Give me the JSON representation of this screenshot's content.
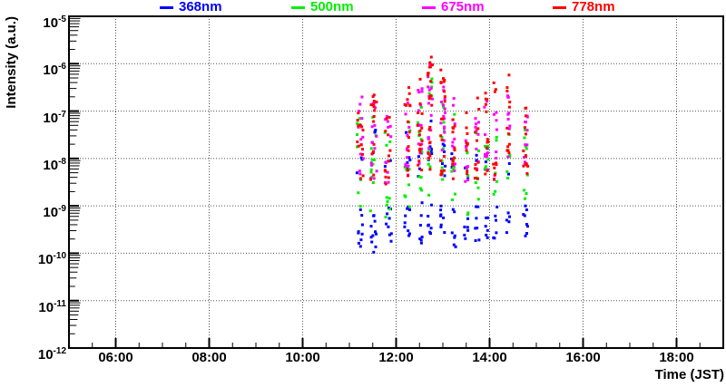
{
  "chart_data": {
    "type": "scatter",
    "title": "",
    "marker": "square",
    "marker_size_px": 3,
    "grid": "dotted",
    "grid_color": "#555555",
    "frame_color": "#000000",
    "legend_position": "top",
    "axes": {
      "x": {
        "label": "Time (JST)",
        "range_hours": [
          5,
          19
        ],
        "tick_hours": [
          6,
          8,
          10,
          12,
          14,
          16,
          18
        ],
        "tick_labels": [
          "06:00",
          "08:00",
          "10:00",
          "12:00",
          "14:00",
          "16:00",
          "18:00"
        ],
        "minor_step_hours": 0.5
      },
      "y": {
        "label": "Intensity (a.u.)",
        "scale": "log",
        "range_exponents": [
          -12,
          -5
        ],
        "tick_exponents": [
          -5,
          -6,
          -7,
          -8,
          -9,
          -10,
          -11,
          -12
        ]
      }
    },
    "series": [
      {
        "name": "368nm",
        "color": "#0000ff"
      },
      {
        "name": "500nm",
        "color": "#00ee00"
      },
      {
        "name": "675nm",
        "color": "#ff00ff"
      },
      {
        "name": "778nm",
        "color": "#ff0000"
      }
    ],
    "clusters": [
      {
        "t": 11.23,
        "w": 0.14,
        "points": {
          "368nm": [
            [
              -8.6,
              -7.9,
              3
            ],
            [
              -9.9,
              -8.9,
              9
            ]
          ],
          "500nm": [
            [
              -9.1,
              -7.1,
              9
            ]
          ],
          "675nm": [
            [
              -8.6,
              -6.7,
              12
            ]
          ],
          "778nm": [
            [
              -8.6,
              -6.9,
              13
            ]
          ]
        }
      },
      {
        "t": 11.52,
        "w": 0.14,
        "points": {
          "368nm": [
            [
              -8.5,
              -7.4,
              5
            ],
            [
              -10.0,
              -8.9,
              11
            ]
          ],
          "500nm": [
            [
              -9.2,
              -7.0,
              11
            ]
          ],
          "675nm": [
            [
              -8.5,
              -6.7,
              13
            ]
          ],
          "778nm": [
            [
              -8.5,
              -6.6,
              15
            ]
          ]
        }
      },
      {
        "t": 11.83,
        "w": 0.14,
        "points": {
          "368nm": [
            [
              -8.6,
              -7.9,
              3
            ],
            [
              -9.9,
              -9.0,
              9
            ]
          ],
          "500nm": [
            [
              -9.3,
              -7.3,
              9
            ]
          ],
          "675nm": [
            [
              -8.7,
              -7.0,
              11
            ]
          ],
          "778nm": [
            [
              -8.6,
              -6.9,
              12
            ]
          ]
        }
      },
      {
        "t": 12.24,
        "w": 0.12,
        "points": {
          "368nm": [
            [
              -8.5,
              -7.4,
              5
            ],
            [
              -9.9,
              -8.9,
              9
            ]
          ],
          "500nm": [
            [
              -9.1,
              -7.1,
              9
            ]
          ],
          "675nm": [
            [
              -8.5,
              -6.7,
              12
            ]
          ],
          "778nm": [
            [
              -8.5,
              -6.4,
              15
            ]
          ]
        }
      },
      {
        "t": 12.51,
        "w": 0.1,
        "points": {
          "368nm": [
            [
              -8.5,
              -7.3,
              5
            ],
            [
              -9.8,
              -8.9,
              7
            ]
          ],
          "500nm": [
            [
              -8.9,
              -6.9,
              10
            ]
          ],
          "675nm": [
            [
              -8.4,
              -6.5,
              13
            ]
          ],
          "778nm": [
            [
              -8.4,
              -6.3,
              16
            ]
          ]
        }
      },
      {
        "t": 12.73,
        "w": 0.1,
        "points": {
          "368nm": [
            [
              -8.5,
              -7.2,
              6
            ],
            [
              -9.7,
              -8.9,
              7
            ]
          ],
          "500nm": [
            [
              -8.8,
              -6.2,
              12
            ]
          ],
          "675nm": [
            [
              -8.3,
              -6.0,
              16
            ]
          ],
          "778nm": [
            [
              -8.3,
              -5.8,
              22
            ]
          ]
        }
      },
      {
        "t": 13.0,
        "w": 0.1,
        "points": {
          "368nm": [
            [
              -8.6,
              -7.2,
              6
            ],
            [
              -9.8,
              -9.0,
              8
            ]
          ],
          "500nm": [
            [
              -8.9,
              -6.4,
              11
            ]
          ],
          "675nm": [
            [
              -8.4,
              -6.1,
              15
            ]
          ],
          "778nm": [
            [
              -8.4,
              -5.9,
              20
            ]
          ]
        }
      },
      {
        "t": 13.23,
        "w": 0.09,
        "points": {
          "368nm": [
            [
              -8.5,
              -7.7,
              4
            ],
            [
              -9.9,
              -9.0,
              7
            ]
          ],
          "500nm": [
            [
              -9.1,
              -7.0,
              8
            ]
          ],
          "675nm": [
            [
              -8.5,
              -6.6,
              11
            ]
          ],
          "778nm": [
            [
              -8.5,
              -6.6,
              12
            ]
          ]
        }
      },
      {
        "t": 13.5,
        "w": 0.08,
        "points": {
          "368nm": [
            [
              -8.6,
              -8.0,
              2
            ],
            [
              -9.8,
              -9.1,
              6
            ]
          ],
          "500nm": [
            [
              -9.2,
              -7.5,
              7
            ]
          ],
          "675nm": [
            [
              -8.6,
              -7.2,
              8
            ]
          ],
          "778nm": [
            [
              -8.6,
              -7.0,
              9
            ]
          ]
        }
      },
      {
        "t": 13.73,
        "w": 0.09,
        "points": {
          "368nm": [
            [
              -8.5,
              -7.8,
              3
            ],
            [
              -9.9,
              -9.0,
              7
            ]
          ],
          "500nm": [
            [
              -9.1,
              -7.2,
              7
            ]
          ],
          "675nm": [
            [
              -8.5,
              -6.9,
              9
            ]
          ],
          "778nm": [
            [
              -8.5,
              -6.7,
              11
            ]
          ]
        }
      },
      {
        "t": 13.93,
        "w": 0.08,
        "points": {
          "368nm": [
            [
              -8.4,
              -7.7,
              3
            ],
            [
              -9.8,
              -9.0,
              6
            ]
          ],
          "500nm": [
            [
              -9.0,
              -7.1,
              7
            ]
          ],
          "675nm": [
            [
              -8.4,
              -6.7,
              9
            ]
          ],
          "778nm": [
            [
              -8.4,
              -6.4,
              11
            ]
          ]
        }
      },
      {
        "t": 14.12,
        "w": 0.08,
        "points": {
          "368nm": [
            [
              -9.8,
              -9.0,
              6
            ]
          ],
          "500nm": [
            [
              -9.1,
              -7.3,
              6
            ]
          ],
          "675nm": [
            [
              -8.5,
              -6.9,
              8
            ]
          ],
          "778nm": [
            [
              -8.5,
              -6.4,
              9
            ]
          ]
        }
      },
      {
        "t": 14.4,
        "w": 0.07,
        "points": {
          "368nm": [
            [
              -8.4,
              -8.0,
              2
            ],
            [
              -9.7,
              -9.1,
              5
            ]
          ],
          "500nm": [
            [
              -8.9,
              -7.2,
              6
            ]
          ],
          "675nm": [
            [
              -8.4,
              -6.5,
              9
            ]
          ],
          "778nm": [
            [
              -8.3,
              -6.0,
              12
            ]
          ]
        }
      },
      {
        "t": 14.77,
        "w": 0.1,
        "points": {
          "368nm": [
            [
              -10.0,
              -8.9,
              8
            ]
          ],
          "500nm": [
            [
              -8.9,
              -7.4,
              8
            ]
          ],
          "675nm": [
            [
              -8.4,
              -7.0,
              10
            ]
          ],
          "778nm": [
            [
              -8.4,
              -6.8,
              13
            ]
          ]
        }
      }
    ]
  }
}
